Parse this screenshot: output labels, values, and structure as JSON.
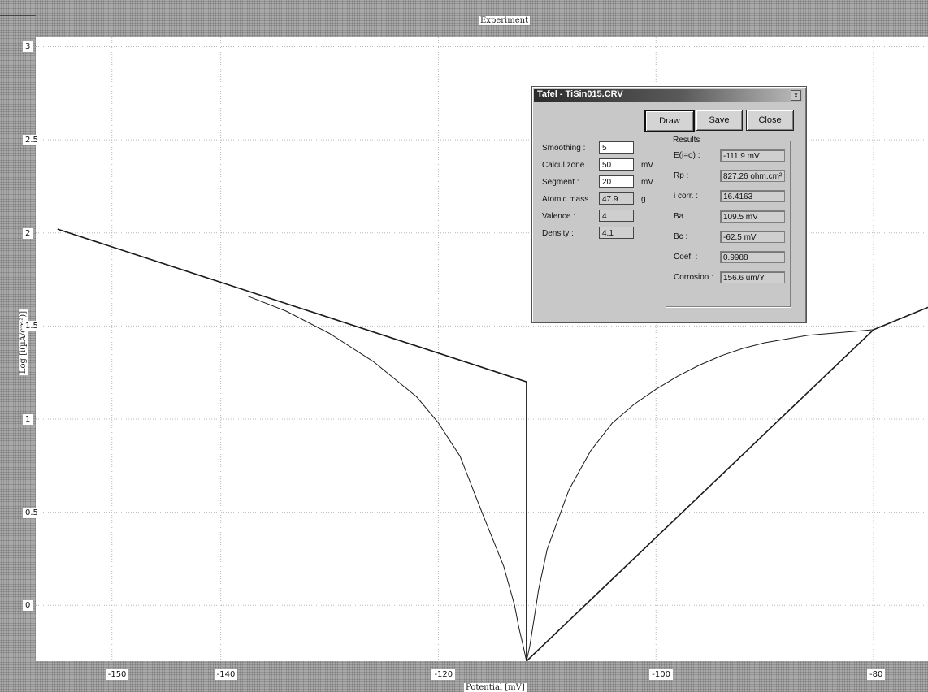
{
  "chart_title": "Experiment",
  "chart_data": {
    "type": "line",
    "xlabel": "Potential [mV]",
    "ylabel": "Log [i(µA/cm²)]",
    "xlim": [
      -157,
      -75
    ],
    "ylim": [
      -0.3,
      3.05
    ],
    "x_ticks": [
      "-150",
      "-140",
      "-120",
      "-100",
      "-80"
    ],
    "y_ticks": [
      "3",
      "2.5",
      "2",
      "1.5",
      "1",
      "0.5",
      "0"
    ],
    "grid": true,
    "series": [
      {
        "role": "measured-curve",
        "x": [
          -137.5,
          -134,
          -130,
          -126,
          -122,
          -120,
          -118,
          -116,
          -114,
          -113,
          -112.6,
          -112.2,
          -111.9,
          -111.6,
          -111.2,
          -110.8,
          -110,
          -108,
          -106,
          -104,
          -102,
          -100,
          -98,
          -96,
          -94,
          -92,
          -90,
          -88,
          -86,
          -84,
          -82,
          -80
        ],
        "y": [
          1.66,
          1.58,
          1.46,
          1.31,
          1.12,
          0.98,
          0.8,
          0.5,
          0.21,
          0.0,
          -0.12,
          -0.22,
          -0.3,
          -0.22,
          -0.07,
          0.08,
          0.3,
          0.62,
          0.83,
          0.98,
          1.08,
          1.16,
          1.23,
          1.29,
          1.34,
          1.38,
          1.41,
          1.43,
          1.45,
          1.46,
          1.47,
          1.48
        ]
      },
      {
        "role": "tafel-fit",
        "x": [
          -155,
          -111.9,
          -111.9,
          -80,
          -75
        ],
        "y": [
          2.02,
          1.2,
          -0.3,
          1.48,
          1.6
        ]
      }
    ]
  },
  "dialog": {
    "title": "Tafel - TiSin015.CRV",
    "close_glyph": "x",
    "buttons": {
      "draw": "Draw",
      "save": "Save",
      "close": "Close"
    },
    "params": [
      {
        "label": "Smoothing :",
        "value": "5",
        "unit": ""
      },
      {
        "label": "Calcul.zone :",
        "value": "50",
        "unit": "mV"
      },
      {
        "label": "Segment :",
        "value": "20",
        "unit": "mV"
      },
      {
        "label": "Atomic mass :",
        "value": "47.9",
        "unit": "g"
      },
      {
        "label": "Valence :",
        "value": "4",
        "unit": ""
      },
      {
        "label": "Density :",
        "value": "4.1",
        "unit": ""
      }
    ],
    "results_heading": "Results",
    "results": [
      {
        "label": "E(i=o) :",
        "value": "-111.9 mV"
      },
      {
        "label": "Rp :",
        "value": "827.26 ohm.cm²"
      },
      {
        "label": "i corr. :",
        "value": "16.4163"
      },
      {
        "label": "Ba :",
        "value": "109.5 mV"
      },
      {
        "label": "Bc :",
        "value": "-62.5 mV"
      },
      {
        "label": "Coef. :",
        "value": "0.9988"
      },
      {
        "label": "Corrosion :",
        "value": "156.6 um/Y"
      }
    ]
  }
}
